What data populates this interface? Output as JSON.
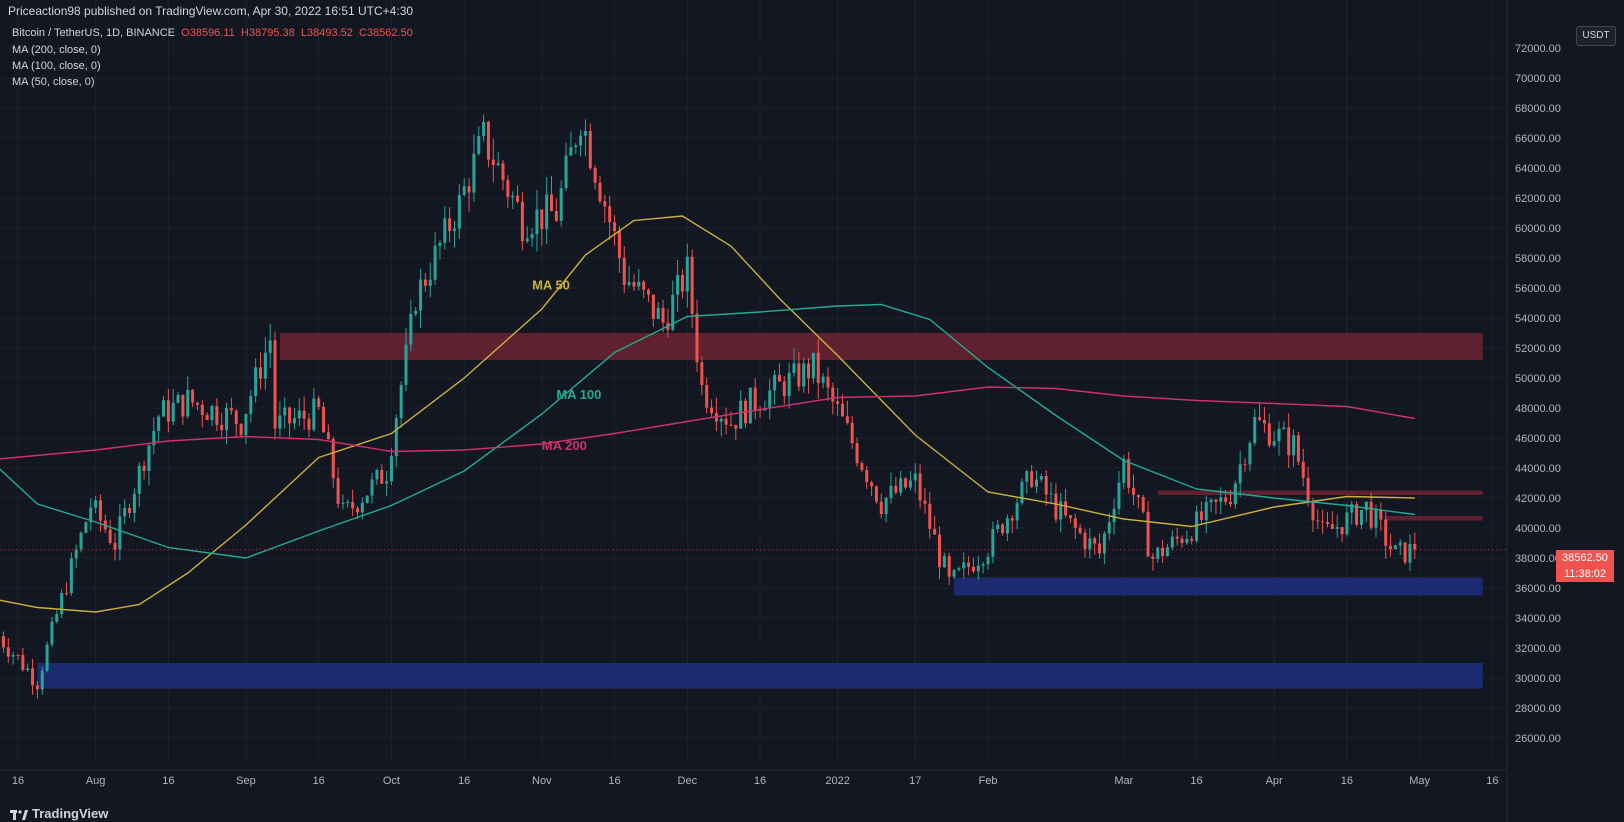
{
  "header": {
    "publisher": "Priceaction98 published on TradingView.com, Apr 30, 2022 16:51 UTC+4:30"
  },
  "symbol_line": {
    "name": "Bitcoin / TetherUS, 1D, BINANCE",
    "open": "O38596.11",
    "high": "H38795.38",
    "low": "L38493.52",
    "close": "C38562.50"
  },
  "indicators": [
    "MA (200, close, 0)",
    "MA (100, close, 0)",
    "MA (50, close, 0)"
  ],
  "unit": "USDT",
  "last_price": "38562.50",
  "countdown": "11:38:02",
  "brand": "TradingView",
  "colors": {
    "background": "#131722",
    "up": "#26a69a",
    "down": "#ef5350",
    "ma50": "#c9b03a",
    "ma100": "#22ab94",
    "ma200": "#d0306a",
    "resistance": "#7a2535",
    "support": "#1e2f7a"
  },
  "chart_data": {
    "type": "candlestick",
    "y_axis": {
      "range": [
        25000,
        73000
      ],
      "ticks": [
        "72000.00",
        "70000.00",
        "68000.00",
        "66000.00",
        "64000.00",
        "62000.00",
        "60000.00",
        "58000.00",
        "56000.00",
        "54000.00",
        "52000.00",
        "50000.00",
        "48000.00",
        "46000.00",
        "44000.00",
        "42000.00",
        "40000.00",
        "38000.00",
        "36000.00",
        "34000.00",
        "32000.00",
        "30000.00",
        "28000.00",
        "26000.00"
      ]
    },
    "x_axis": {
      "ticks": [
        {
          "label": "16",
          "date": "2021-07-16"
        },
        {
          "label": "Aug",
          "date": "2021-08-01"
        },
        {
          "label": "16",
          "date": "2021-08-16"
        },
        {
          "label": "Sep",
          "date": "2021-09-01"
        },
        {
          "label": "16",
          "date": "2021-09-16"
        },
        {
          "label": "Oct",
          "date": "2021-10-01"
        },
        {
          "label": "16",
          "date": "2021-10-16"
        },
        {
          "label": "Nov",
          "date": "2021-11-01"
        },
        {
          "label": "16",
          "date": "2021-11-16"
        },
        {
          "label": "Dec",
          "date": "2021-12-01"
        },
        {
          "label": "16",
          "date": "2021-12-16"
        },
        {
          "label": "2022",
          "date": "2022-01-01"
        },
        {
          "label": "17",
          "date": "2022-01-17"
        },
        {
          "label": "Feb",
          "date": "2022-02-01"
        },
        {
          "label": "Mar",
          "date": "2022-03-01"
        },
        {
          "label": "16",
          "date": "2022-03-16"
        },
        {
          "label": "Apr",
          "date": "2022-04-01"
        },
        {
          "label": "16",
          "date": "2022-04-16"
        },
        {
          "label": "May",
          "date": "2022-05-01"
        },
        {
          "label": "16",
          "date": "2022-05-16"
        }
      ]
    },
    "close_anchors": [
      {
        "date": "2021-07-12",
        "close": 32800
      },
      {
        "date": "2021-07-20",
        "close": 29800
      },
      {
        "date": "2021-07-25",
        "close": 35300
      },
      {
        "date": "2021-07-31",
        "close": 41500
      },
      {
        "date": "2021-08-05",
        "close": 39000
      },
      {
        "date": "2021-08-14",
        "close": 47500
      },
      {
        "date": "2021-08-20",
        "close": 48500
      },
      {
        "date": "2021-08-31",
        "close": 47100
      },
      {
        "date": "2021-09-06",
        "close": 52600
      },
      {
        "date": "2021-09-07",
        "close": 46800
      },
      {
        "date": "2021-09-16",
        "close": 47700
      },
      {
        "date": "2021-09-21",
        "close": 40800
      },
      {
        "date": "2021-09-30",
        "close": 43800
      },
      {
        "date": "2021-10-06",
        "close": 55300
      },
      {
        "date": "2021-10-15",
        "close": 61600
      },
      {
        "date": "2021-10-20",
        "close": 66000
      },
      {
        "date": "2021-10-28",
        "close": 60600
      },
      {
        "date": "2021-11-04",
        "close": 61000
      },
      {
        "date": "2021-11-09",
        "close": 67500
      },
      {
        "date": "2021-11-12",
        "close": 64100
      },
      {
        "date": "2021-11-18",
        "close": 56900
      },
      {
        "date": "2021-11-26",
        "close": 53700
      },
      {
        "date": "2021-12-01",
        "close": 57100
      },
      {
        "date": "2021-12-04",
        "close": 49300
      },
      {
        "date": "2021-12-10",
        "close": 47100
      },
      {
        "date": "2021-12-14",
        "close": 48300
      },
      {
        "date": "2021-12-27",
        "close": 50700
      },
      {
        "date": "2022-01-01",
        "close": 47700
      },
      {
        "date": "2022-01-10",
        "close": 41800
      },
      {
        "date": "2022-01-17",
        "close": 43100
      },
      {
        "date": "2022-01-24",
        "close": 36200
      },
      {
        "date": "2022-02-01",
        "close": 38700
      },
      {
        "date": "2022-02-10",
        "close": 43500
      },
      {
        "date": "2022-02-17",
        "close": 40500
      },
      {
        "date": "2022-02-24",
        "close": 38300
      },
      {
        "date": "2022-03-01",
        "close": 44400
      },
      {
        "date": "2022-03-07",
        "close": 38000
      },
      {
        "date": "2022-03-14",
        "close": 39700
      },
      {
        "date": "2022-03-23",
        "close": 42300
      },
      {
        "date": "2022-03-28",
        "close": 47100
      },
      {
        "date": "2022-04-05",
        "close": 45500
      },
      {
        "date": "2022-04-11",
        "close": 39500
      },
      {
        "date": "2022-04-20",
        "close": 41400
      },
      {
        "date": "2022-04-26",
        "close": 38200
      },
      {
        "date": "2022-04-30",
        "close": 38562.5
      }
    ],
    "moving_averages": [
      {
        "label": "MA 50",
        "points": [
          {
            "date": "2021-07-12",
            "value": 35200
          },
          {
            "date": "2021-07-20",
            "value": 34700
          },
          {
            "date": "2021-08-01",
            "value": 34400
          },
          {
            "date": "2021-08-10",
            "value": 34900
          },
          {
            "date": "2021-08-20",
            "value": 37000
          },
          {
            "date": "2021-09-01",
            "value": 40200
          },
          {
            "date": "2021-09-16",
            "value": 44700
          },
          {
            "date": "2021-10-01",
            "value": 46300
          },
          {
            "date": "2021-10-16",
            "value": 50000
          },
          {
            "date": "2021-11-01",
            "value": 54600
          },
          {
            "date": "2021-11-10",
            "value": 58200
          },
          {
            "date": "2021-11-20",
            "value": 60500
          },
          {
            "date": "2021-11-30",
            "value": 60800
          },
          {
            "date": "2021-12-10",
            "value": 58800
          },
          {
            "date": "2021-12-20",
            "value": 55300
          },
          {
            "date": "2022-01-01",
            "value": 51500
          },
          {
            "date": "2022-01-17",
            "value": 46200
          },
          {
            "date": "2022-02-01",
            "value": 42400
          },
          {
            "date": "2022-02-15",
            "value": 41600
          },
          {
            "date": "2022-03-01",
            "value": 40600
          },
          {
            "date": "2022-03-15",
            "value": 40100
          },
          {
            "date": "2022-04-01",
            "value": 41400
          },
          {
            "date": "2022-04-16",
            "value": 42100
          },
          {
            "date": "2022-04-30",
            "value": 42000
          }
        ]
      },
      {
        "label": "MA 100",
        "points": [
          {
            "date": "2021-07-12",
            "value": 44000
          },
          {
            "date": "2021-07-20",
            "value": 41600
          },
          {
            "date": "2021-08-01",
            "value": 40400
          },
          {
            "date": "2021-08-16",
            "value": 38700
          },
          {
            "date": "2021-09-01",
            "value": 38000
          },
          {
            "date": "2021-09-16",
            "value": 39800
          },
          {
            "date": "2021-10-01",
            "value": 41500
          },
          {
            "date": "2021-10-16",
            "value": 43800
          },
          {
            "date": "2021-11-01",
            "value": 47600
          },
          {
            "date": "2021-11-16",
            "value": 51700
          },
          {
            "date": "2021-12-01",
            "value": 54100
          },
          {
            "date": "2021-12-16",
            "value": 54400
          },
          {
            "date": "2022-01-01",
            "value": 54800
          },
          {
            "date": "2022-01-10",
            "value": 54900
          },
          {
            "date": "2022-01-20",
            "value": 53900
          },
          {
            "date": "2022-02-01",
            "value": 50700
          },
          {
            "date": "2022-02-15",
            "value": 47500
          },
          {
            "date": "2022-03-01",
            "value": 44500
          },
          {
            "date": "2022-03-16",
            "value": 42600
          },
          {
            "date": "2022-04-01",
            "value": 42000
          },
          {
            "date": "2022-04-16",
            "value": 41500
          },
          {
            "date": "2022-04-30",
            "value": 40900
          }
        ]
      },
      {
        "label": "MA 200",
        "points": [
          {
            "date": "2021-07-12",
            "value": 44600
          },
          {
            "date": "2021-08-01",
            "value": 45200
          },
          {
            "date": "2021-08-16",
            "value": 45800
          },
          {
            "date": "2021-09-01",
            "value": 46100
          },
          {
            "date": "2021-09-16",
            "value": 45900
          },
          {
            "date": "2021-10-01",
            "value": 45100
          },
          {
            "date": "2021-10-16",
            "value": 45200
          },
          {
            "date": "2021-11-01",
            "value": 45600
          },
          {
            "date": "2021-11-16",
            "value": 46300
          },
          {
            "date": "2021-12-01",
            "value": 47100
          },
          {
            "date": "2021-12-16",
            "value": 47900
          },
          {
            "date": "2022-01-01",
            "value": 48700
          },
          {
            "date": "2022-01-17",
            "value": 48800
          },
          {
            "date": "2022-02-01",
            "value": 49400
          },
          {
            "date": "2022-02-15",
            "value": 49300
          },
          {
            "date": "2022-03-01",
            "value": 48800
          },
          {
            "date": "2022-03-16",
            "value": 48500
          },
          {
            "date": "2022-04-01",
            "value": 48300
          },
          {
            "date": "2022-04-16",
            "value": 48100
          },
          {
            "date": "2022-04-30",
            "value": 47300
          }
        ]
      }
    ],
    "zones": [
      {
        "kind": "resistance",
        "from": "2021-09-08",
        "to": "2022-05-14",
        "low": 51200,
        "high": 53000
      },
      {
        "kind": "resistance",
        "from": "2022-03-08",
        "to": "2022-05-14",
        "low": 42200,
        "high": 42500
      },
      {
        "kind": "resistance",
        "from": "2022-04-24",
        "to": "2022-05-14",
        "low": 40500,
        "high": 40800
      },
      {
        "kind": "support",
        "from": "2022-01-25",
        "to": "2022-05-14",
        "low": 35500,
        "high": 36700
      },
      {
        "kind": "support",
        "from": "2021-07-20",
        "to": "2022-05-14",
        "low": 29300,
        "high": 31000
      }
    ],
    "annotations": [
      {
        "text": "MA 50",
        "date": "2021-10-30",
        "value": 55900
      },
      {
        "text": "MA 100",
        "date": "2021-11-04",
        "value": 48600
      },
      {
        "text": "MA 200",
        "date": "2021-11-01",
        "value": 45200
      }
    ]
  }
}
